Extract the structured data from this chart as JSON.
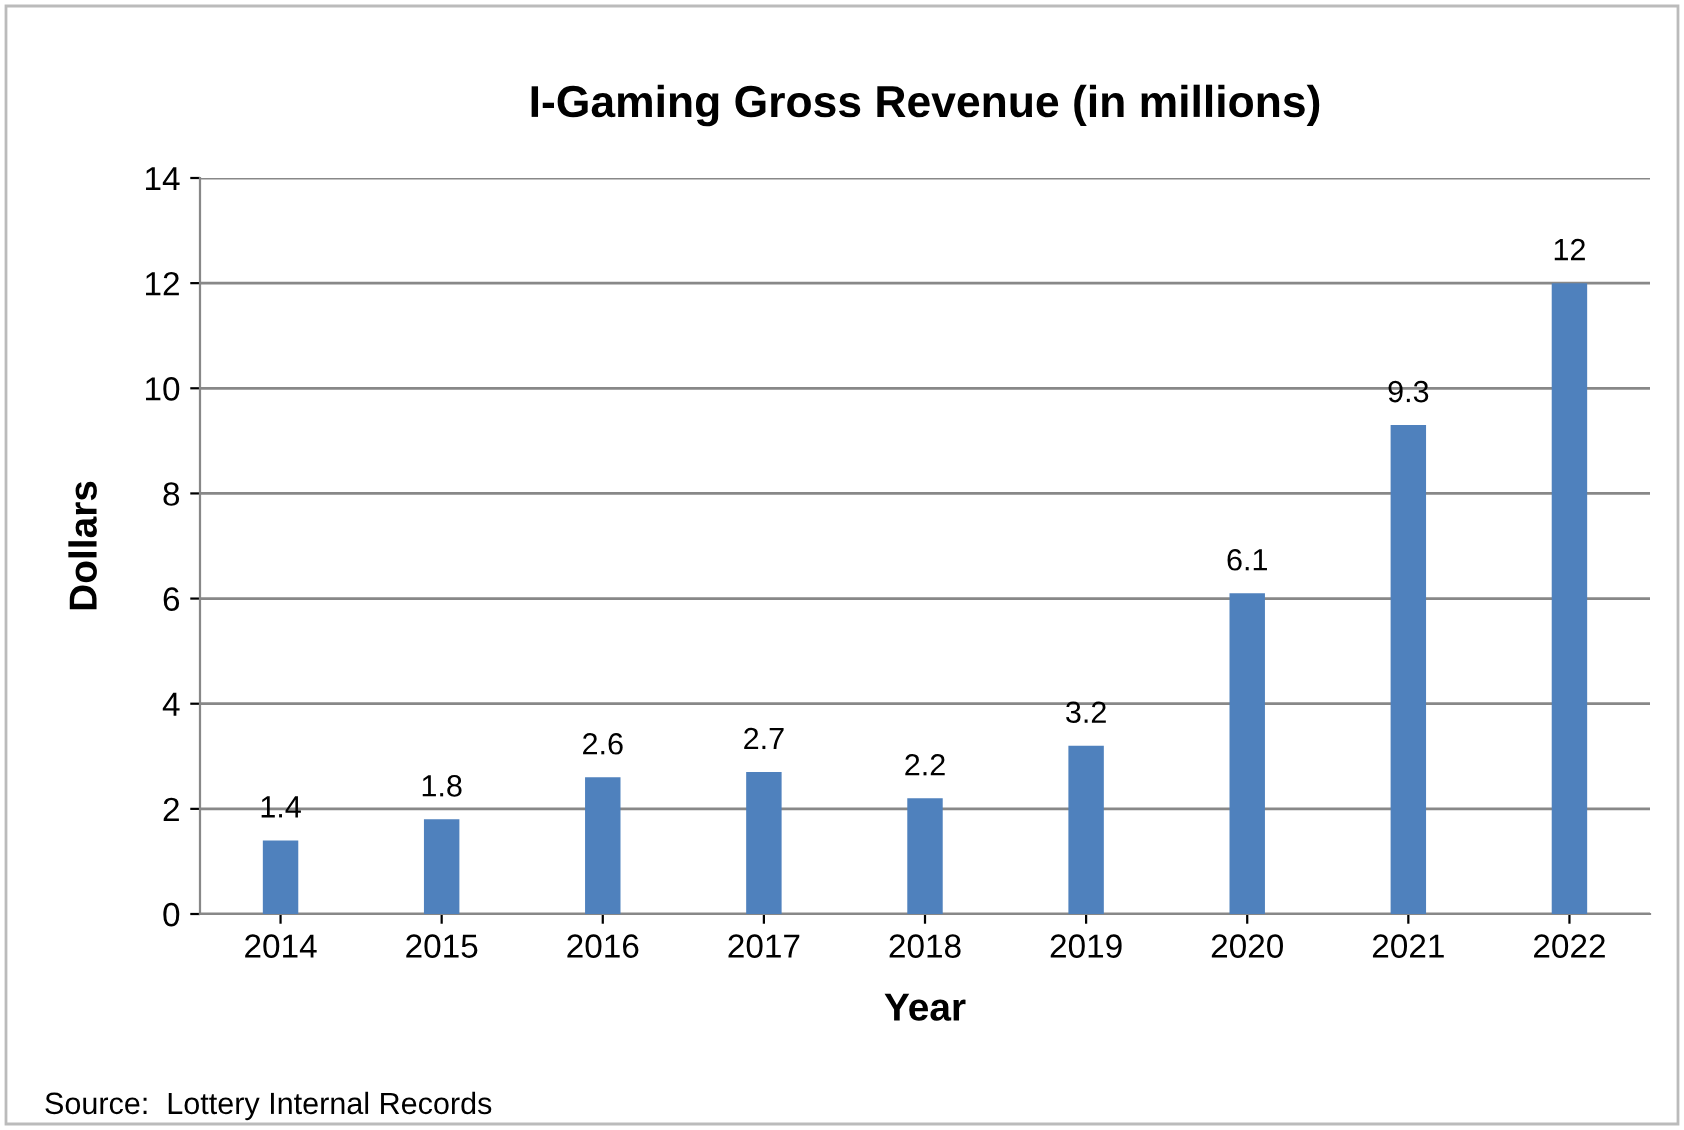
{
  "chart_data": {
    "type": "bar",
    "title": "I-Gaming Gross Revenue (in millions)",
    "xlabel": "Year",
    "ylabel": "Dollars",
    "categories": [
      "2014",
      "2015",
      "2016",
      "2017",
      "2018",
      "2019",
      "2020",
      "2021",
      "2022"
    ],
    "values": [
      1.4,
      1.8,
      2.6,
      2.7,
      2.2,
      3.2,
      6.1,
      9.3,
      12
    ],
    "color": "#4f81bd",
    "ylim": [
      0,
      14
    ],
    "yticks": [
      0,
      2,
      4,
      6,
      8,
      10,
      12,
      14
    ],
    "grid": "y",
    "data_labels": true,
    "annotations": [
      "Source:  Lottery Internal Records"
    ]
  }
}
